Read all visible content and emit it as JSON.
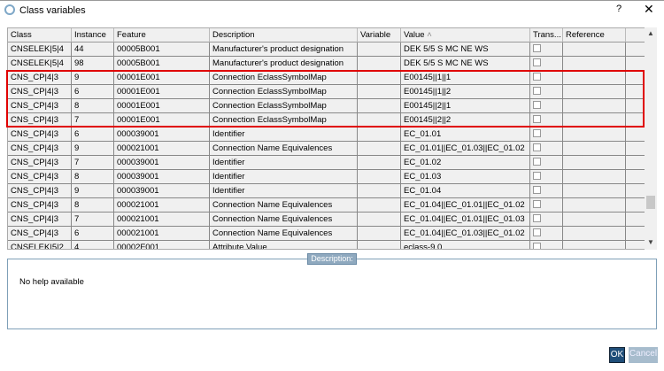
{
  "window": {
    "title": "Class variables",
    "help": "?",
    "close": "✕"
  },
  "table": {
    "columns": [
      "Class",
      "Instance",
      "Feature",
      "Description",
      "Variable",
      "Value",
      "Trans...",
      "Reference",
      ""
    ],
    "rows": [
      [
        "CNSELEK|5|4",
        "44",
        "00005B001",
        "Manufacturer's product designation",
        "",
        "DEK 5/5 S MC NE WS"
      ],
      [
        "CNSELEK|5|4",
        "98",
        "00005B001",
        "Manufacturer's product designation",
        "",
        "DEK 5/5 S MC NE WS"
      ],
      [
        "CNS_CP|4|3",
        "9",
        "00001E001",
        "Connection EclassSymbolMap",
        "",
        "E00145||1||1"
      ],
      [
        "CNS_CP|4|3",
        "6",
        "00001E001",
        "Connection EclassSymbolMap",
        "",
        "E00145||1||2"
      ],
      [
        "CNS_CP|4|3",
        "8",
        "00001E001",
        "Connection EclassSymbolMap",
        "",
        "E00145||2||1"
      ],
      [
        "CNS_CP|4|3",
        "7",
        "00001E001",
        "Connection EclassSymbolMap",
        "",
        "E00145||2||2"
      ],
      [
        "CNS_CP|4|3",
        "6",
        "000039001",
        "Identifier",
        "",
        "EC_01.01"
      ],
      [
        "CNS_CP|4|3",
        "9",
        "000021001",
        "Connection Name Equivalences",
        "",
        "EC_01.01||EC_01.03||EC_01.02"
      ],
      [
        "CNS_CP|4|3",
        "7",
        "000039001",
        "Identifier",
        "",
        "EC_01.02"
      ],
      [
        "CNS_CP|4|3",
        "8",
        "000039001",
        "Identifier",
        "",
        "EC_01.03"
      ],
      [
        "CNS_CP|4|3",
        "9",
        "000039001",
        "Identifier",
        "",
        "EC_01.04"
      ],
      [
        "CNS_CP|4|3",
        "8",
        "000021001",
        "Connection Name Equivalences",
        "",
        "EC_01.04||EC_01.01||EC_01.02"
      ],
      [
        "CNS_CP|4|3",
        "7",
        "000021001",
        "Connection Name Equivalences",
        "",
        "EC_01.04||EC_01.01||EC_01.03"
      ],
      [
        "CNS_CP|4|3",
        "6",
        "000021001",
        "Connection Name Equivalences",
        "",
        "EC_01.04||EC_01.03||EC_01.02"
      ],
      [
        "CNSELEK|5|2",
        "4",
        "00002F001",
        "Attribute Value",
        "",
        "eclass-9.0"
      ]
    ],
    "sorted_column": "Value",
    "highlight_color": "#e00000"
  },
  "description": {
    "label": "Description:",
    "text": "No help available"
  },
  "buttons": {
    "ok": "OK",
    "cancel": "Cancel"
  }
}
